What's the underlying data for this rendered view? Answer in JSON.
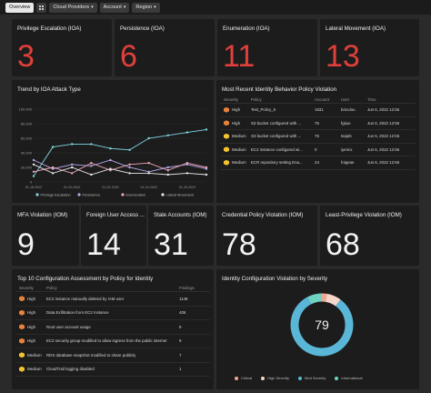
{
  "toolbar": {
    "overview": "Overview",
    "cloud_providers": "Cloud Providers",
    "account": "Account",
    "region": "Region"
  },
  "ioa_cards": [
    {
      "title": "Privilege Escalation (IOA)",
      "value": "3"
    },
    {
      "title": "Persistence (IOA)",
      "value": "6"
    },
    {
      "title": "Enumeration (IOA)",
      "value": "11"
    },
    {
      "title": "Lateral Movement (IOA)",
      "value": "13"
    }
  ],
  "trend": {
    "title": "Trend by IOA Attack Type",
    "chart_data": {
      "type": "line",
      "x": [
        "01-18-2022",
        "01-19-2022",
        "01-20-2022",
        "01-21-2022",
        "01-22-2022",
        "01-23-2022",
        "01-24-2022",
        "01-25-2022",
        "01-26-2022",
        "01-27-2022"
      ],
      "xticks": [
        "01-18-2022",
        "01-20-2022",
        "01-22-2022",
        "01-24-2022",
        "01-26-2022"
      ],
      "yticks": [
        "0",
        "20,000",
        "40,000",
        "60,000",
        "80,000",
        "100,000"
      ],
      "ylim": [
        0,
        110000
      ],
      "series": [
        {
          "name": "Privilege Escalation",
          "color": "#7fd6e0",
          "values": [
            8000,
            48000,
            52000,
            52000,
            46000,
            44000,
            60000,
            64000,
            68000,
            72000
          ]
        },
        {
          "name": "Persistence",
          "color": "#b7a6e8",
          "values": [
            30000,
            18000,
            24000,
            22000,
            30000,
            20000,
            14000,
            20000,
            24000,
            18000
          ]
        },
        {
          "name": "Enumeration",
          "color": "#f0a8b8",
          "values": [
            14000,
            20000,
            12000,
            26000,
            16000,
            24000,
            26000,
            16000,
            26000,
            20000
          ]
        },
        {
          "name": "Lateral Movement",
          "color": "#e6e6e6",
          "values": [
            24000,
            12000,
            20000,
            10000,
            18000,
            12000,
            12000,
            10000,
            12000,
            10000
          ]
        }
      ]
    }
  },
  "identity_violation": {
    "title": "Most Recent Identity Behavior Policy Violation",
    "headers": [
      "Severity",
      "Policy",
      "Account",
      "User",
      "Time"
    ],
    "rows": [
      {
        "sev": "high",
        "severity": "High",
        "policy": "Test_Policy_5",
        "account": "1831",
        "user": "bmcdou",
        "time": "Jun 6, 2022 12:55"
      },
      {
        "sev": "high",
        "severity": "High",
        "policy": "S3 bucket configured with ...",
        "account": "76",
        "user": "fgiiuo",
        "time": "Jun 6, 2022 12:55"
      },
      {
        "sev": "med",
        "severity": "Medium",
        "policy": "S3 bucket configured with ...",
        "account": "76",
        "user": "tsajeb",
        "time": "Jun 6, 2022 12:55"
      },
      {
        "sev": "med",
        "severity": "Medium",
        "policy": "EC2 instance configured wi...",
        "account": "0",
        "user": "iyericx",
        "time": "Jun 6, 2022 12:55"
      },
      {
        "sev": "med",
        "severity": "Medium",
        "policy": "ECR repository setting Ena...",
        "account": "24",
        "user": "foigeae",
        "time": "Jun 6, 2022 12:55"
      }
    ]
  },
  "iom_cards": [
    {
      "title": "MFA Violation (IOM)",
      "value": "9"
    },
    {
      "title": "Foreign User Access ...",
      "value": "14"
    },
    {
      "title": "Stale Accounts (IOM)",
      "value": "31"
    },
    {
      "title": "Credential Policy Violation (IOM)",
      "value": "78"
    },
    {
      "title": "Least-Privilege Violation (IOM)",
      "value": "68"
    }
  ],
  "top10": {
    "title": "Top 10 Configuration Assessment by Policy for Identity",
    "headers": [
      "Severity",
      "Policy",
      "Findings"
    ],
    "rows": [
      {
        "sev": "high",
        "severity": "High",
        "policy": "EC2 instance manually deleted by IAM user",
        "findings": "1148"
      },
      {
        "sev": "high",
        "severity": "High",
        "policy": "Data Exfiltration from EC2 Instance",
        "findings": "406"
      },
      {
        "sev": "high",
        "severity": "High",
        "policy": "Root user account usage",
        "findings": "9"
      },
      {
        "sev": "high",
        "severity": "High",
        "policy": "EC2 security group modified to allow ingress from the public internet",
        "findings": "9"
      },
      {
        "sev": "med",
        "severity": "Medium",
        "policy": "RDS database snapshot modified to share publicly",
        "findings": "7"
      },
      {
        "sev": "med",
        "severity": "Medium",
        "policy": "CloudTrail logging disabled",
        "findings": "1"
      }
    ]
  },
  "severity_donut": {
    "title": "Identity Configuration Violation by Severity",
    "center_value": "79",
    "chart_data": {
      "type": "pie",
      "categories": [
        "Critical",
        "High Severity",
        "Med Severity",
        "Informational"
      ],
      "values": [
        2,
        6,
        65,
        6
      ],
      "colors": [
        "#f0a890",
        "#f6d6c8",
        "#5ab6d6",
        "#6fd3c2"
      ]
    }
  }
}
